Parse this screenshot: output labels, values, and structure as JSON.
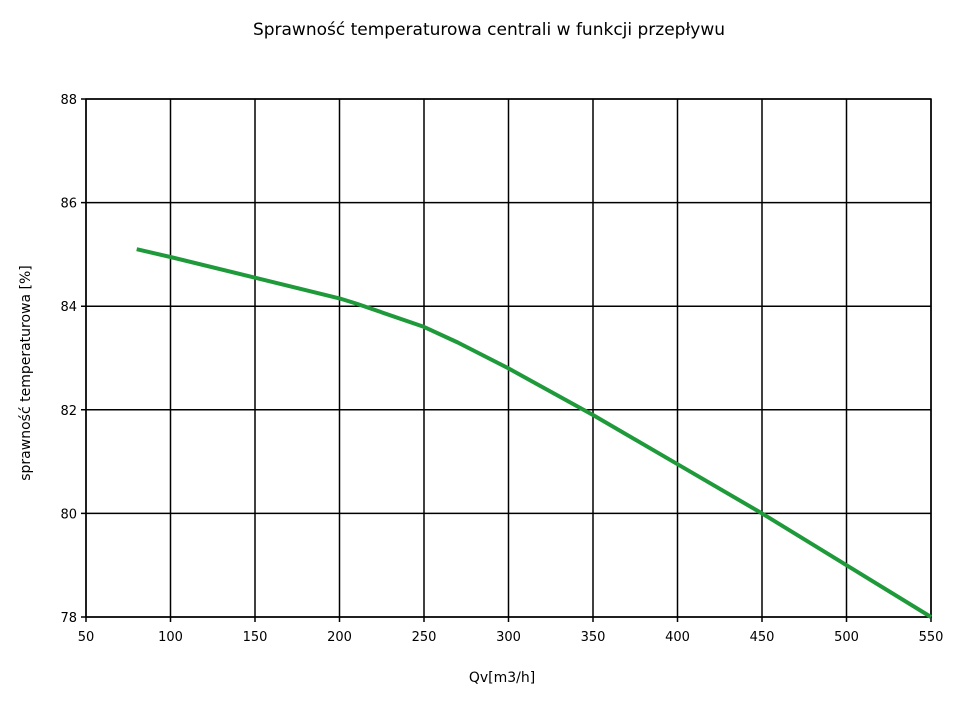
{
  "chart_data": {
    "type": "line",
    "title": "Sprawność temperaturowa centrali w funkcji przepływu",
    "xlabel": "Qv[m3/h]",
    "ylabel": "sprawność temperaturowa [%]",
    "xlim": [
      50,
      550
    ],
    "ylim": [
      78,
      88
    ],
    "xticks": [
      "50",
      "100",
      "150",
      "200",
      "250",
      "300",
      "350",
      "400",
      "450",
      "500",
      "550"
    ],
    "yticks": [
      "78",
      "80",
      "82",
      "84",
      "86",
      "88"
    ],
    "grid": true,
    "series": [
      {
        "color": "#1f9a3a",
        "x": [
          80,
          100,
          150,
          200,
          210,
          250,
          270,
          300,
          350,
          400,
          450,
          500,
          550
        ],
        "y": [
          85.1,
          84.95,
          84.55,
          84.15,
          84.05,
          83.6,
          83.3,
          82.8,
          81.9,
          80.95,
          80.0,
          79.0,
          78.0
        ]
      }
    ]
  }
}
